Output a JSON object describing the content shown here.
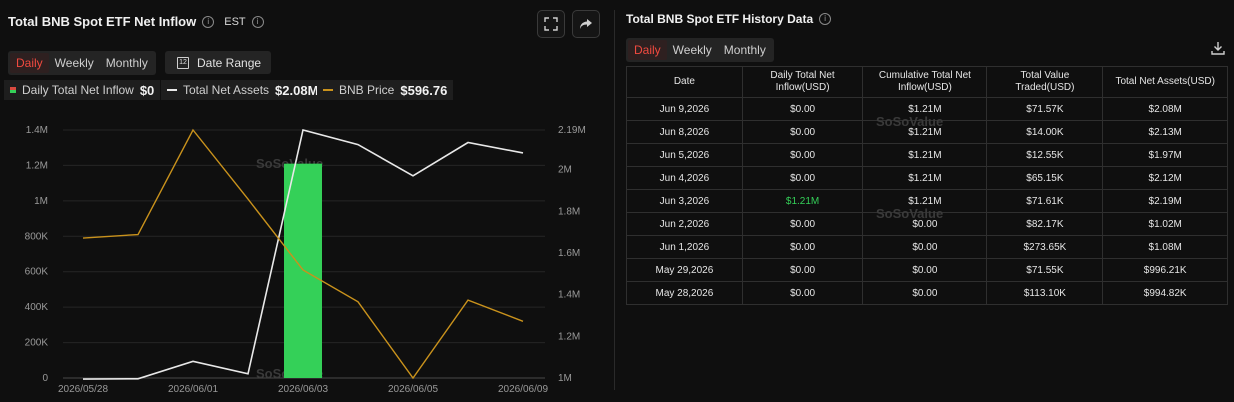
{
  "left_panel": {
    "title": "Total BNB Spot ETF Net Inflow",
    "timezone": "EST",
    "tabs": [
      "Daily",
      "Weekly",
      "Monthly"
    ],
    "active_tab": "Daily",
    "date_range_label": "Date Range",
    "legend": [
      {
        "label": "Daily Total Net Inflow",
        "value": "$0"
      },
      {
        "label": "Total Net Assets",
        "value": "$2.08M"
      },
      {
        "label": "BNB Price",
        "value": "$596.76"
      }
    ],
    "watermark": "SoSoValue"
  },
  "colors": {
    "inflow_bar": "#34d058",
    "net_assets_line": "#e8e8e8",
    "bnb_price_line": "#c9921c",
    "active_tab": "#f04a3f"
  },
  "chart_data": {
    "type": "bar",
    "x": [
      "2026/05/28",
      "2026/05/29",
      "2026/06/01",
      "2026/06/02",
      "2026/06/03",
      "2026/06/04",
      "2026/06/05",
      "2026/06/08",
      "2026/06/09"
    ],
    "x_tick_labels": [
      "2026/05/28",
      "2026/06/01",
      "2026/06/03",
      "2026/06/05",
      "2026/06/09"
    ],
    "series": [
      {
        "name": "Daily Total Net Inflow",
        "type": "bar",
        "axis": "left",
        "values": [
          0,
          0,
          0,
          0,
          1210000,
          0,
          0,
          0,
          0
        ]
      },
      {
        "name": "Total Net Assets",
        "type": "line",
        "axis": "right",
        "values": [
          994820,
          996210,
          1080000,
          1020000,
          2190000,
          2120000,
          1970000,
          2130000,
          2080000
        ]
      },
      {
        "name": "BNB Price",
        "type": "line",
        "axis": "left",
        "values": [
          790000,
          810000,
          1400000,
          1010000,
          610000,
          430000,
          0,
          440000,
          320000
        ]
      }
    ],
    "y_left": {
      "ticks": [
        "0",
        "200K",
        "400K",
        "600K",
        "800K",
        "1M",
        "1.2M",
        "1.4M"
      ],
      "range": [
        0,
        1400000
      ]
    },
    "y_right": {
      "ticks": [
        "1M",
        "1.2M",
        "1.4M",
        "1.6M",
        "1.8M",
        "2M",
        "2.19M"
      ],
      "range": [
        1000000,
        2190000
      ]
    }
  },
  "right_panel": {
    "title": "Total BNB Spot ETF History Data",
    "tabs": [
      "Daily",
      "Weekly",
      "Monthly"
    ],
    "active_tab": "Daily",
    "columns": [
      "Date",
      "Daily Total Net Inflow(USD)",
      "Cumulative Total Net Inflow(USD)",
      "Total Value Traded(USD)",
      "Total Net Assets(USD)"
    ],
    "rows": [
      [
        "Jun 9,2026",
        "$0.00",
        "$1.21M",
        "$71.57K",
        "$2.08M"
      ],
      [
        "Jun 8,2026",
        "$0.00",
        "$1.21M",
        "$14.00K",
        "$2.13M"
      ],
      [
        "Jun 5,2026",
        "$0.00",
        "$1.21M",
        "$12.55K",
        "$1.97M"
      ],
      [
        "Jun 4,2026",
        "$0.00",
        "$1.21M",
        "$65.15K",
        "$2.12M"
      ],
      [
        "Jun 3,2026",
        "$1.21M",
        "$1.21M",
        "$71.61K",
        "$2.19M"
      ],
      [
        "Jun 2,2026",
        "$0.00",
        "$0.00",
        "$82.17K",
        "$1.02M"
      ],
      [
        "Jun 1,2026",
        "$0.00",
        "$0.00",
        "$273.65K",
        "$1.08M"
      ],
      [
        "May 29,2026",
        "$0.00",
        "$0.00",
        "$71.55K",
        "$996.21K"
      ],
      [
        "May 28,2026",
        "$0.00",
        "$0.00",
        "$113.10K",
        "$994.82K"
      ]
    ],
    "watermark": "SoSoValue"
  }
}
